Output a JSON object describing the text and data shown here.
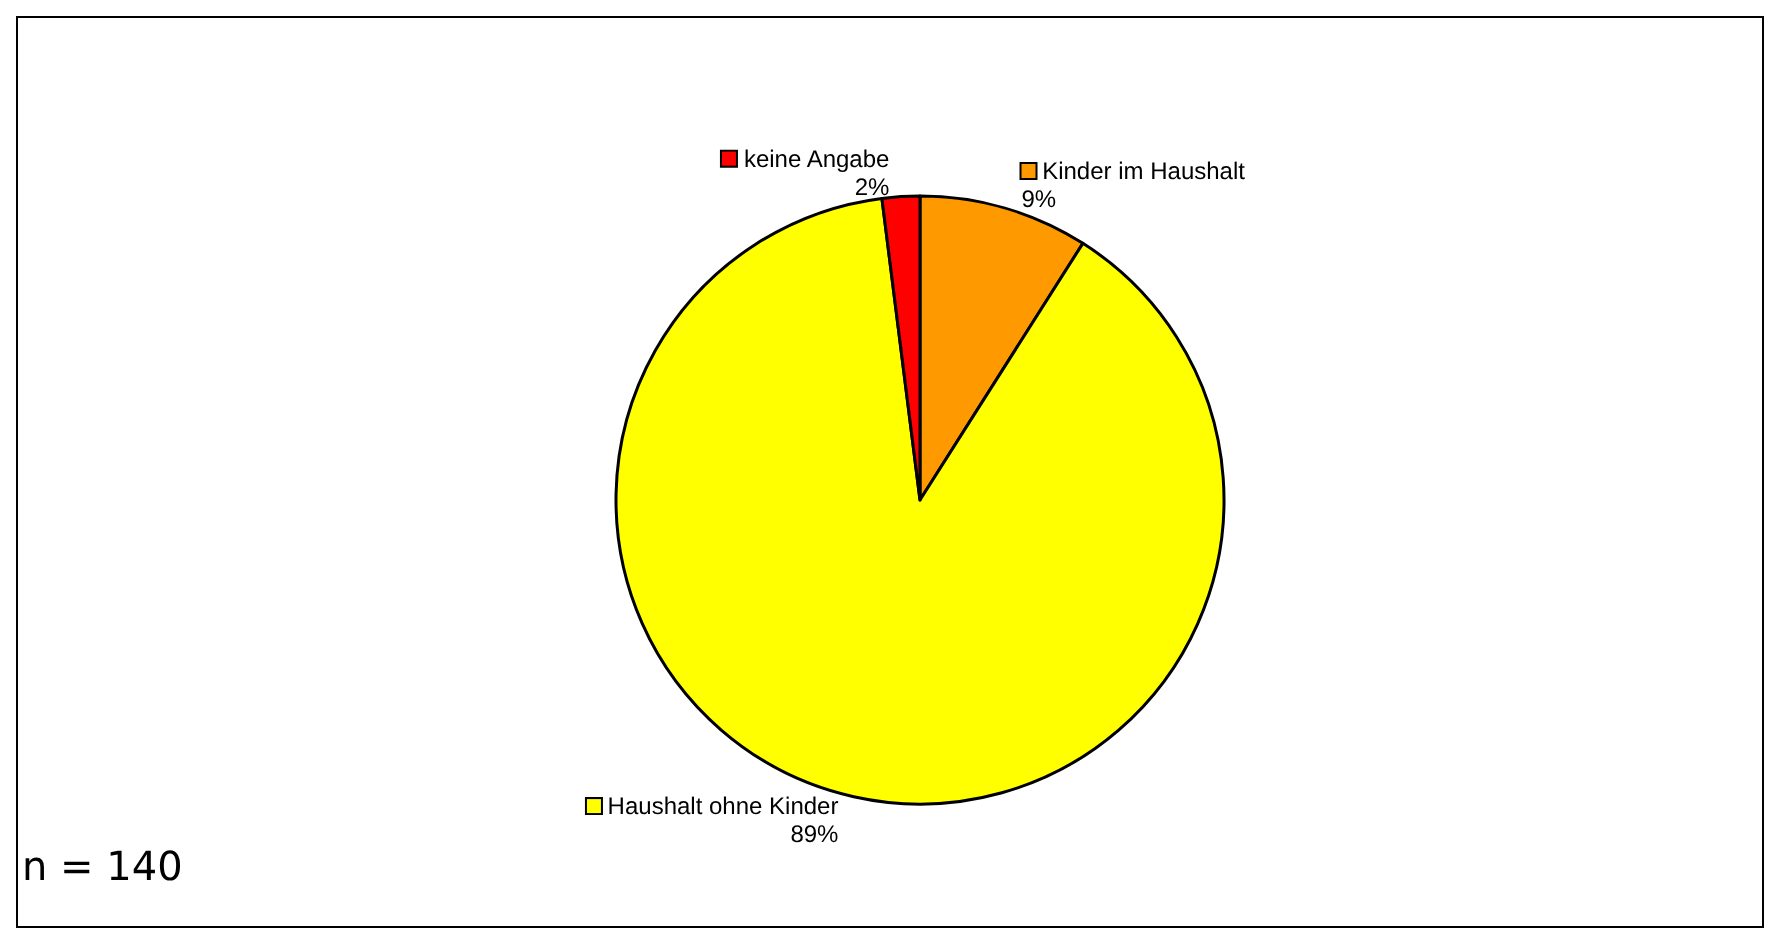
{
  "chart_data": {
    "type": "pie",
    "categories": [
      "Kinder im Haushalt",
      "Haushalt ohne Kinder",
      "keine Angabe"
    ],
    "values": [
      9,
      89,
      2
    ],
    "colors": [
      "#ff9900",
      "#ffff00",
      "#ff0000"
    ],
    "value_labels": [
      "9%",
      "89%",
      "2%"
    ],
    "annotations": [
      "n = 140"
    ],
    "legend": "top"
  }
}
